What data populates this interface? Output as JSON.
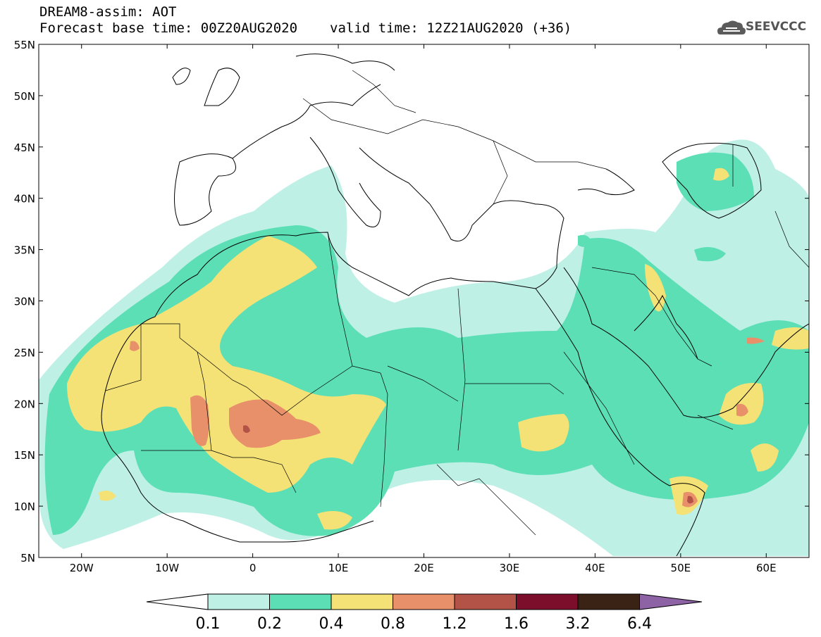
{
  "header": {
    "line1": "DREAM8-assim: AOT",
    "base_time": "Forecast base time: 00Z20AUG2020",
    "valid_time": "valid time: 12Z21AUG2020 (+36)"
  },
  "logo": {
    "text": "SEEVCCC",
    "icon": "cloud-icon"
  },
  "map": {
    "lat_labels": [
      "55N",
      "50N",
      "45N",
      "40N",
      "35N",
      "30N",
      "25N",
      "20N",
      "15N",
      "10N",
      "5N"
    ],
    "lon_labels": [
      "20W",
      "10W",
      "0",
      "10E",
      "20E",
      "30E",
      "40E",
      "50E",
      "60E"
    ],
    "lon_range": [
      -25,
      65
    ],
    "lat_range": [
      5,
      55
    ]
  },
  "colorbar": {
    "labels": [
      "0.1",
      "0.2",
      "0.4",
      "0.8",
      "1.2",
      "1.6",
      "3.2",
      "6.4"
    ],
    "colors": [
      "#ffffff",
      "#bff0e6",
      "#5ddfb5",
      "#f5e276",
      "#e8906a",
      "#b35246",
      "#7c0e2b",
      "#3a2214",
      "#8e63a6"
    ]
  }
}
